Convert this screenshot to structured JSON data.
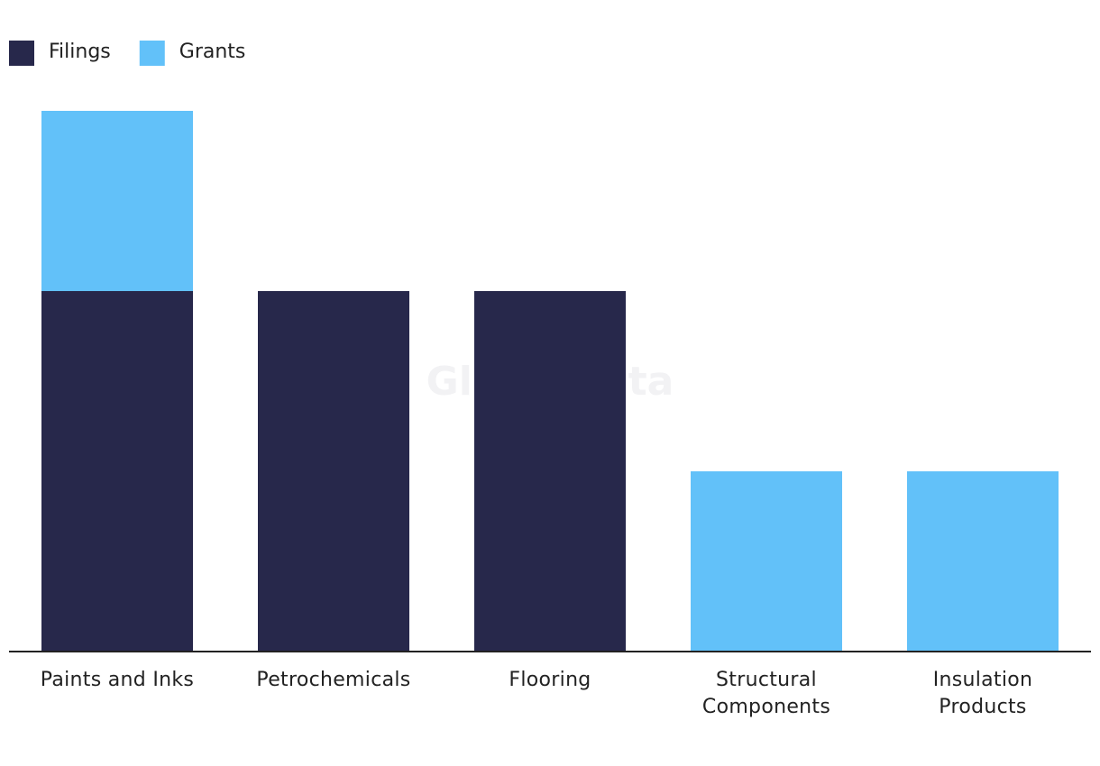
{
  "chart_data": {
    "type": "stacked_bar",
    "watermark": "GlobalData",
    "categories": [
      "Paints and Inks",
      "Petrochemicals",
      "Flooring",
      "Structural Components",
      "Insulation Products"
    ],
    "series": [
      {
        "name": "Filings",
        "color": "#27284b",
        "values": [
          2,
          2,
          2,
          0,
          0
        ]
      },
      {
        "name": "Grants",
        "color": "#62c1f9",
        "values": [
          1,
          0,
          0,
          1,
          1
        ]
      }
    ],
    "ylim": [
      0,
      3
    ],
    "legend": "top-left"
  }
}
